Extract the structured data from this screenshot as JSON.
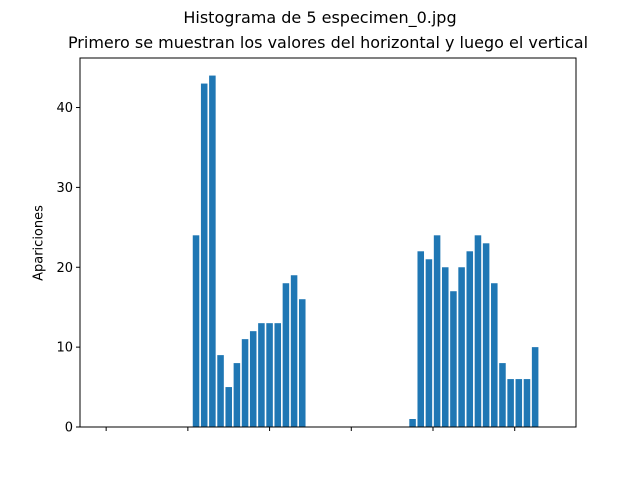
{
  "figure": {
    "suptitle": "Histograma de 5 especimen_0.jpg",
    "subtitle": "Primero se muestran los valores del horizontal y luego el vertical"
  },
  "colors": {
    "bar": "#1f77b4",
    "axis": "#000000"
  },
  "chart_data": {
    "type": "bar",
    "title": "Primero se muestran los valores del horizontal y luego el vertical",
    "suptitle": "Histograma de 5 especimen_0.jpg",
    "xlabel": "",
    "ylabel": "Apariciones",
    "ylim": [
      0,
      46.2
    ],
    "yticks": [
      0,
      10,
      20,
      30,
      40
    ],
    "xticks_labeled": false,
    "grid": false,
    "x": [
      0,
      1,
      2,
      3,
      4,
      5,
      6,
      7,
      8,
      9,
      10,
      11,
      12,
      13,
      14,
      15,
      16,
      17,
      18,
      19,
      20,
      21,
      22,
      23,
      24,
      25,
      26,
      27,
      27.5,
      28.5,
      29.5,
      30.5,
      31.5,
      32.5,
      33.5,
      34.5,
      35.5,
      36.5,
      37.5,
      38.5,
      39.5,
      40.5,
      41.5,
      42.5,
      43.5,
      44.5,
      45.5,
      46.5,
      47.5,
      48.5,
      49.5,
      50.5,
      51.5,
      52.5,
      53.5,
      54.5
    ],
    "values": [
      0,
      0,
      0,
      0,
      0,
      0,
      0,
      0,
      0,
      0,
      0,
      24,
      43,
      44,
      9,
      5,
      8,
      11,
      12,
      13,
      13,
      13,
      18,
      19,
      16,
      0,
      0,
      0,
      0,
      0,
      0,
      0,
      0,
      0,
      0,
      0,
      0,
      0,
      1,
      22,
      21,
      24,
      20,
      17,
      20,
      22,
      24,
      23,
      18,
      8,
      6,
      6,
      6,
      10,
      0,
      0
    ]
  }
}
